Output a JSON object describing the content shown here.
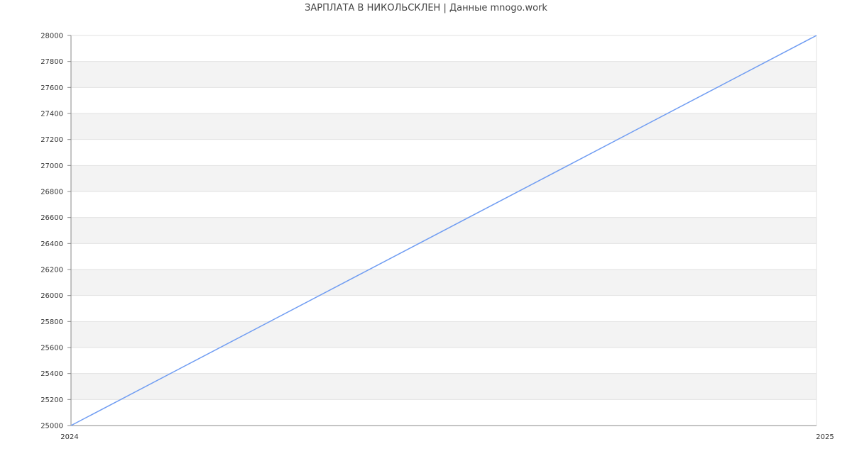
{
  "chart_data": {
    "type": "line",
    "title": "ЗАРПЛАТА В  НИКОЛЬСКЛЕН | Данные mnogo.work",
    "xlabel": "",
    "ylabel": "",
    "x_ticks": [
      "2024",
      "2025"
    ],
    "y_ticks": [
      25000,
      25200,
      25400,
      25600,
      25800,
      26000,
      26200,
      26400,
      26600,
      26800,
      27000,
      27200,
      27400,
      27600,
      27800,
      28000
    ],
    "xlim": [
      2024,
      2025
    ],
    "ylim": [
      25000,
      28000
    ],
    "grid": true,
    "series": [
      {
        "x": [
          2024,
          2025
        ],
        "values": [
          25000,
          28000
        ],
        "color": "#6f9cf2"
      }
    ]
  }
}
